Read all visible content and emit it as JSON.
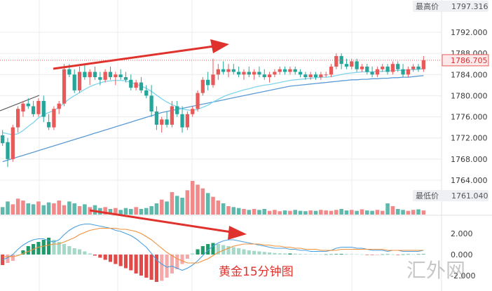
{
  "chart_data": [
    {
      "type": "candlestick",
      "y_ticks": [
        "1792.000",
        "1788.000",
        "1784.000",
        "1780.000",
        "1776.000",
        "1772.000",
        "1768.000",
        "1764.000"
      ],
      "ylim": [
        1761.04,
        1797.316
      ],
      "high_label": "最高价",
      "high_value": "1797.316",
      "low_label": "最低价",
      "low_value": "1761.040",
      "current_price": "1786.705",
      "colors": {
        "up": "#e85a5a",
        "down": "#26a69a",
        "ma_short": "#7fd4ec",
        "ma_long": "#5b9bd5",
        "arrow": "#e0322c"
      },
      "candles": [
        [
          1772.5,
          1773.5,
          1770.5,
          1771.0
        ],
        [
          1771.2,
          1772.0,
          1766.5,
          1768.0
        ],
        [
          1768.0,
          1774.5,
          1767.5,
          1774.0
        ],
        [
          1774.0,
          1778.0,
          1773.0,
          1777.5
        ],
        [
          1777.0,
          1779.0,
          1776.0,
          1778.5
        ],
        [
          1778.5,
          1779.5,
          1777.5,
          1778.0
        ],
        [
          1778.0,
          1779.0,
          1776.0,
          1776.5
        ],
        [
          1776.5,
          1779.5,
          1776.0,
          1779.0
        ],
        [
          1779.0,
          1780.0,
          1775.0,
          1776.0
        ],
        [
          1775.0,
          1776.5,
          1773.5,
          1774.0
        ],
        [
          1774.0,
          1778.0,
          1773.5,
          1777.5
        ],
        [
          1777.5,
          1779.0,
          1776.5,
          1778.5
        ],
        [
          1778.5,
          1786.0,
          1778.0,
          1785.0
        ],
        [
          1785.0,
          1786.0,
          1783.5,
          1784.0
        ],
        [
          1784.0,
          1785.0,
          1780.5,
          1781.0
        ],
        [
          1781.0,
          1785.5,
          1780.5,
          1784.5
        ],
        [
          1784.5,
          1786.0,
          1783.0,
          1783.5
        ],
        [
          1783.5,
          1785.0,
          1782.0,
          1784.5
        ],
        [
          1784.5,
          1785.5,
          1783.0,
          1783.5
        ],
        [
          1783.5,
          1784.5,
          1782.0,
          1783.0
        ],
        [
          1783.0,
          1785.0,
          1782.5,
          1784.5
        ],
        [
          1784.5,
          1785.5,
          1783.0,
          1783.5
        ],
        [
          1783.5,
          1784.5,
          1782.0,
          1784.0
        ],
        [
          1784.0,
          1785.0,
          1783.0,
          1783.5
        ],
        [
          1783.5,
          1784.5,
          1782.5,
          1783.0
        ],
        [
          1783.0,
          1784.0,
          1781.0,
          1781.5
        ],
        [
          1781.5,
          1783.0,
          1781.0,
          1782.5
        ],
        [
          1782.5,
          1783.5,
          1780.5,
          1781.0
        ],
        [
          1781.0,
          1782.0,
          1779.5,
          1780.0
        ],
        [
          1780.0,
          1782.0,
          1776.0,
          1777.0
        ],
        [
          1777.0,
          1778.0,
          1773.5,
          1774.5
        ],
        [
          1774.5,
          1776.0,
          1773.0,
          1775.5
        ],
        [
          1775.5,
          1777.0,
          1774.0,
          1774.5
        ],
        [
          1774.5,
          1779.0,
          1774.0,
          1778.0
        ],
        [
          1778.0,
          1779.0,
          1776.0,
          1776.5
        ],
        [
          1776.5,
          1778.0,
          1773.0,
          1774.0
        ],
        [
          1774.0,
          1777.0,
          1773.5,
          1776.5
        ],
        [
          1776.5,
          1778.0,
          1776.0,
          1777.5
        ],
        [
          1777.5,
          1781.0,
          1777.0,
          1780.5
        ],
        [
          1780.5,
          1783.5,
          1780.0,
          1783.0
        ],
        [
          1783.0,
          1784.5,
          1781.0,
          1782.0
        ],
        [
          1782.0,
          1787.0,
          1781.5,
          1784.0
        ],
        [
          1784.0,
          1786.0,
          1783.0,
          1785.0
        ],
        [
          1785.0,
          1786.5,
          1784.0,
          1784.5
        ],
        [
          1784.5,
          1786.0,
          1783.5,
          1785.0
        ],
        [
          1785.0,
          1786.0,
          1784.0,
          1784.5
        ],
        [
          1784.5,
          1785.5,
          1783.5,
          1784.0
        ],
        [
          1784.0,
          1785.0,
          1783.0,
          1784.5
        ],
        [
          1784.5,
          1785.5,
          1783.5,
          1784.0
        ],
        [
          1784.0,
          1785.0,
          1783.0,
          1784.5
        ],
        [
          1784.5,
          1785.5,
          1783.5,
          1784.0
        ],
        [
          1784.0,
          1785.0,
          1783.0,
          1783.5
        ],
        [
          1783.5,
          1784.5,
          1782.5,
          1784.0
        ],
        [
          1784.0,
          1785.0,
          1783.5,
          1784.5
        ],
        [
          1784.5,
          1785.5,
          1784.0,
          1785.0
        ],
        [
          1785.0,
          1785.5,
          1784.0,
          1784.5
        ],
        [
          1784.5,
          1785.5,
          1784.0,
          1785.0
        ],
        [
          1785.0,
          1785.5,
          1784.0,
          1784.5
        ],
        [
          1784.5,
          1785.0,
          1783.5,
          1784.0
        ],
        [
          1784.0,
          1784.5,
          1783.0,
          1783.5
        ],
        [
          1783.5,
          1784.5,
          1783.0,
          1784.0
        ],
        [
          1784.0,
          1784.5,
          1783.0,
          1783.5
        ],
        [
          1783.5,
          1784.5,
          1783.0,
          1784.0
        ],
        [
          1784.0,
          1784.5,
          1783.5,
          1784.0
        ],
        [
          1784.0,
          1786.0,
          1783.5,
          1785.5
        ],
        [
          1785.5,
          1788.0,
          1785.0,
          1787.5
        ],
        [
          1787.5,
          1788.0,
          1785.0,
          1786.0
        ],
        [
          1786.0,
          1787.0,
          1785.0,
          1785.5
        ],
        [
          1785.5,
          1787.0,
          1785.0,
          1786.5
        ],
        [
          1786.5,
          1787.0,
          1784.5,
          1785.0
        ],
        [
          1785.0,
          1786.0,
          1784.5,
          1785.5
        ],
        [
          1785.5,
          1786.0,
          1784.0,
          1784.5
        ],
        [
          1784.5,
          1785.5,
          1783.5,
          1784.0
        ],
        [
          1784.0,
          1785.5,
          1783.5,
          1785.0
        ],
        [
          1785.0,
          1786.0,
          1784.5,
          1785.5
        ],
        [
          1785.5,
          1786.0,
          1784.0,
          1784.5
        ],
        [
          1784.5,
          1786.5,
          1784.0,
          1786.0
        ],
        [
          1786.0,
          1786.5,
          1784.5,
          1785.0
        ],
        [
          1785.0,
          1786.0,
          1783.5,
          1784.0
        ],
        [
          1784.0,
          1785.5,
          1783.5,
          1785.0
        ],
        [
          1785.0,
          1786.0,
          1784.5,
          1785.5
        ],
        [
          1785.5,
          1786.0,
          1784.5,
          1785.0
        ],
        [
          1785.0,
          1787.5,
          1784.5,
          1786.7
        ]
      ],
      "ma_short": [
        1773.0,
        1772.8,
        1772.6,
        1772.8,
        1773.4,
        1774.2,
        1774.9,
        1775.8,
        1776.4,
        1776.8,
        1777.2,
        1777.8,
        1778.6,
        1779.4,
        1780.0,
        1780.6,
        1781.2,
        1781.7,
        1782.1,
        1782.4,
        1782.7,
        1782.8,
        1782.9,
        1782.9,
        1782.8,
        1782.5,
        1782.2,
        1781.8,
        1781.4,
        1780.8,
        1780.1,
        1779.4,
        1778.8,
        1778.3,
        1777.9,
        1777.5,
        1777.3,
        1777.2,
        1777.4,
        1777.8,
        1778.2,
        1778.8,
        1779.3,
        1779.8,
        1780.2,
        1780.5,
        1780.8,
        1781.1,
        1781.3,
        1781.6,
        1781.8,
        1782.0,
        1782.1,
        1782.3,
        1782.5,
        1782.7,
        1782.9,
        1783.0,
        1783.1,
        1783.2,
        1783.3,
        1783.4,
        1783.5,
        1783.5,
        1783.6,
        1783.8,
        1784.0,
        1784.2,
        1784.3,
        1784.4,
        1784.5,
        1784.5,
        1784.5,
        1784.6,
        1784.6,
        1784.7,
        1784.7,
        1784.8,
        1784.8,
        1784.9,
        1784.9,
        1785.0,
        1785.1
      ],
      "ma_long": [
        1767.5,
        1767.8,
        1768.1,
        1768.4,
        1768.7,
        1769.0,
        1769.3,
        1769.6,
        1769.9,
        1770.2,
        1770.5,
        1770.8,
        1771.1,
        1771.4,
        1771.7,
        1772.0,
        1772.3,
        1772.6,
        1772.9,
        1773.2,
        1773.5,
        1773.8,
        1774.1,
        1774.4,
        1774.7,
        1775.0,
        1775.3,
        1775.6,
        1775.9,
        1776.2,
        1776.5,
        1776.8,
        1777.0,
        1777.2,
        1777.4,
        1777.6,
        1777.8,
        1778.0,
        1778.2,
        1778.4,
        1778.6,
        1778.8,
        1779.0,
        1779.2,
        1779.4,
        1779.6,
        1779.8,
        1780.0,
        1780.2,
        1780.4,
        1780.6,
        1780.8,
        1781.0,
        1781.2,
        1781.4,
        1781.6,
        1781.8,
        1781.9,
        1782.0,
        1782.1,
        1782.2,
        1782.3,
        1782.4,
        1782.5,
        1782.6,
        1782.7,
        1782.8,
        1782.9,
        1783.0,
        1783.0,
        1783.1,
        1783.1,
        1783.2,
        1783.2,
        1783.3,
        1783.3,
        1783.4,
        1783.4,
        1783.5,
        1783.5,
        1783.6,
        1783.7,
        1783.8
      ]
    },
    {
      "type": "bar",
      "volume": [
        40,
        70,
        55,
        85,
        75,
        60,
        55,
        70,
        50,
        65,
        60,
        75,
        50,
        70,
        60,
        45,
        55,
        40,
        50,
        35,
        40,
        30,
        35,
        25,
        35,
        30,
        40,
        30,
        35,
        45,
        60,
        80,
        70,
        120,
        100,
        90,
        130,
        180,
        160,
        140,
        115,
        95,
        75,
        60,
        45,
        40,
        35,
        30,
        25,
        30,
        25,
        30,
        20,
        25,
        18,
        22,
        20,
        25,
        20,
        18,
        22,
        20,
        25,
        22,
        20,
        25,
        30,
        22,
        25,
        20,
        28,
        22,
        20,
        25,
        20,
        60,
        45,
        30,
        25,
        20,
        25,
        28,
        22
      ]
    },
    {
      "type": "bar",
      "y_ticks": [
        "2.000",
        "0.000",
        "-2.000"
      ],
      "ylim": [
        -3.2,
        3.6
      ],
      "dif": [
        -0.5,
        -0.3,
        0.0,
        0.5,
        0.9,
        1.2,
        1.4,
        1.5,
        1.5,
        1.3,
        1.2,
        1.4,
        1.9,
        2.3,
        2.6,
        2.8,
        2.9,
        2.9,
        2.8,
        2.7,
        2.6,
        2.5,
        2.3,
        2.2,
        2.0,
        1.8,
        1.5,
        1.1,
        0.7,
        0.1,
        -0.5,
        -0.9,
        -1.2,
        -1.1,
        -1.3,
        -1.5,
        -1.3,
        -1.0,
        -0.6,
        -0.1,
        0.4,
        0.8,
        1.1,
        1.3,
        1.4,
        1.4,
        1.3,
        1.2,
        1.1,
        1.0,
        0.9,
        0.8,
        0.7,
        0.6,
        0.6,
        0.6,
        0.5,
        0.5,
        0.4,
        0.4,
        0.3,
        0.3,
        0.3,
        0.3,
        0.4,
        0.6,
        0.7,
        0.7,
        0.7,
        0.6,
        0.6,
        0.5,
        0.4,
        0.4,
        0.4,
        0.3,
        0.4,
        0.4,
        0.3,
        0.3,
        0.3,
        0.3,
        0.4
      ],
      "dea": [
        -0.2,
        -0.2,
        -0.2,
        -0.1,
        0.1,
        0.3,
        0.5,
        0.7,
        0.8,
        0.9,
        1.0,
        1.0,
        1.2,
        1.4,
        1.6,
        1.9,
        2.1,
        2.3,
        2.4,
        2.5,
        2.5,
        2.5,
        2.5,
        2.4,
        2.4,
        2.3,
        2.2,
        2.0,
        1.7,
        1.4,
        1.0,
        0.6,
        0.2,
        -0.1,
        -0.4,
        -0.6,
        -0.8,
        -0.8,
        -0.8,
        -0.6,
        -0.4,
        -0.1,
        0.2,
        0.4,
        0.6,
        0.8,
        0.9,
        1.0,
        1.0,
        1.0,
        1.0,
        0.9,
        0.9,
        0.8,
        0.8,
        0.7,
        0.7,
        0.6,
        0.6,
        0.5,
        0.5,
        0.5,
        0.4,
        0.4,
        0.4,
        0.4,
        0.5,
        0.5,
        0.5,
        0.5,
        0.5,
        0.5,
        0.5,
        0.5,
        0.5,
        0.4,
        0.4,
        0.4,
        0.4,
        0.4,
        0.4,
        0.4,
        0.4
      ],
      "hist": [
        -1.0,
        -0.8,
        -0.6,
        0.0,
        0.4,
        0.8,
        1.0,
        1.2,
        1.4,
        1.6,
        1.4,
        1.2,
        1.0,
        0.8,
        0.6,
        0.5,
        0.3,
        0.1,
        -0.1,
        -0.3,
        -0.5,
        -0.7,
        -0.9,
        -1.1,
        -1.3,
        -1.5,
        -1.8,
        -2.0,
        -2.2,
        -2.4,
        -2.6,
        -2.5,
        -2.2,
        -1.8,
        -1.4,
        -0.9,
        -0.4,
        0.1,
        0.5,
        0.8,
        1.0,
        1.1,
        1.0,
        0.9,
        0.8,
        0.7,
        0.6,
        0.5,
        0.4,
        0.35,
        0.3,
        0.25,
        0.2,
        0.15,
        0.12,
        0.1,
        0.1,
        0.08,
        0.06,
        0.05,
        0.04,
        0.03,
        0.02,
        0.02,
        0.03,
        0.05,
        0.06,
        0.05,
        0.04,
        0.03,
        0.02,
        -0.02,
        -0.03,
        -0.02,
        0.02,
        0.03,
        0.02,
        -0.02,
        0.02,
        0.03,
        0.02,
        0.03,
        0.04
      ]
    }
  ],
  "caption": "黄金15分钟图",
  "watermark": "汇外网"
}
